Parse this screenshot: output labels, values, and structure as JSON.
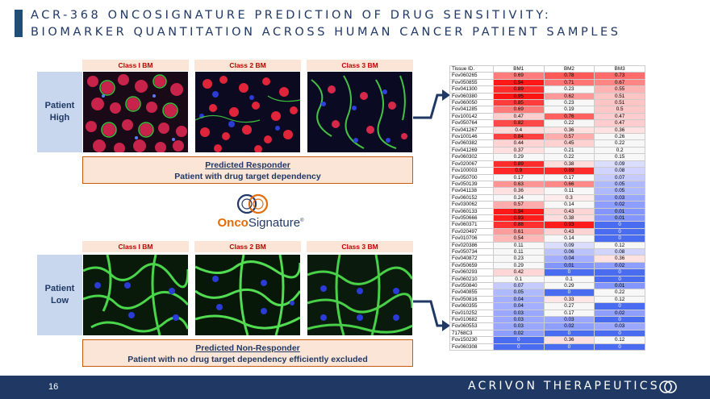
{
  "title": {
    "line1": "ACR-368 ONCOSIGNATURE PREDICTION OF DRUG SENSITIVITY:",
    "line2": "BIOMARKER QUANTITATION ACROSS HUMAN CANCER PATIENT SAMPLES"
  },
  "high": {
    "row_label": "Patient High",
    "class_headers": [
      "Class I BM",
      "Class 2 BM",
      "Class 3 BM"
    ],
    "prediction_title": "Predicted Responder",
    "prediction_text": "Patient with drug target dependency"
  },
  "low": {
    "row_label": "Patient Low",
    "class_headers": [
      "Class I BM",
      "Class 2 BM",
      "Class 3 BM"
    ],
    "prediction_title": "Predicted Non-Responder",
    "prediction_text": "Patient with no drug target dependency efficiently excluded"
  },
  "logo": {
    "part1": "Onco",
    "part2": "Signature",
    "mark": "®"
  },
  "table": {
    "headers": [
      "Tissue ID.",
      "BM1",
      "BM2",
      "BM3"
    ],
    "rows": [
      [
        "Fov060265",
        "0.69",
        "0.78",
        "0.73"
      ],
      [
        "Fov050855",
        "0.94",
        "0.71",
        "0.67"
      ],
      [
        "Fov041300",
        "0.89",
        "0.23",
        "0.55"
      ],
      [
        "Fov060380",
        "0.95",
        "0.62",
        "0.51"
      ],
      [
        "Fov060050",
        "0.85",
        "0.23",
        "0.51"
      ],
      [
        "Fov041285",
        "0.69",
        "0.19",
        "0.5"
      ],
      [
        "Fov100142",
        "0.47",
        "0.76",
        "0.47"
      ],
      [
        "Fov050764",
        "0.82",
        "0.22",
        "0.47"
      ],
      [
        "Fov041267",
        "0.4",
        "0.36",
        "0.36"
      ],
      [
        "Fov100146",
        "0.84",
        "0.57",
        "0.26"
      ],
      [
        "Fov060382",
        "0.44",
        "0.45",
        "0.22"
      ],
      [
        "Fov041269",
        "0.37",
        "0.21",
        "0.2"
      ],
      [
        "Fov060302",
        "0.29",
        "0.22",
        "0.15"
      ],
      [
        "Fov020067",
        "0.89",
        "0.38",
        "0.09"
      ],
      [
        "Fov100003",
        "0.9",
        "0.89",
        "0.08"
      ],
      [
        "Fov050700",
        "0.17",
        "0.17",
        "0.07"
      ],
      [
        "Fov050139",
        "0.63",
        "0.66",
        "0.05"
      ],
      [
        "Fov041138",
        "0.36",
        "0.11",
        "0.05"
      ],
      [
        "Fov060152",
        "0.24",
        "0.3",
        "0.03"
      ],
      [
        "Fov030062",
        "0.57",
        "0.14",
        "0.02"
      ],
      [
        "Fov060133",
        "0.94",
        "0.43",
        "0.01"
      ],
      [
        "Fov050666",
        "0.93",
        "0.38",
        "0.01"
      ],
      [
        "Fov060371",
        "0.88",
        "0.93",
        "0"
      ],
      [
        "Fov020497",
        "0.61",
        "0.43",
        "0"
      ],
      [
        "Fov010706",
        "0.54",
        "0.14",
        "0"
      ],
      [
        "Fov020386",
        "0.11",
        "0.09",
        "0.12"
      ],
      [
        "Fov050734",
        "0.11",
        "0.06",
        "0.08"
      ],
      [
        "Fov040872",
        "0.23",
        "0.04",
        "0.36"
      ],
      [
        "Fov050659",
        "0.29",
        "0.01",
        "0.02"
      ],
      [
        "Fov060293",
        "0.42",
        "0",
        "0"
      ],
      [
        "Fov060210",
        "0.1",
        "0.1",
        "0"
      ],
      [
        "Fov050840",
        "0.07",
        "0.29",
        "0.01"
      ],
      [
        "Fov040855",
        "0.05",
        "0",
        "0.22"
      ],
      [
        "Fov050816",
        "0.04",
        "0.33",
        "0.12"
      ],
      [
        "Fov060355",
        "0.04",
        "0.27",
        "0"
      ],
      [
        "Fov010252",
        "0.03",
        "0.17",
        "0.02"
      ],
      [
        "Fov010682",
        "0.03",
        "0.03",
        "0"
      ],
      [
        "Fov060553",
        "0.03",
        "0.02",
        "0.03"
      ],
      [
        "71768C3",
        "0.02",
        "0",
        "0"
      ],
      [
        "Fov150230",
        "0",
        "0.36",
        "0.12"
      ],
      [
        "Fov060308",
        "0",
        "0",
        "0"
      ]
    ]
  },
  "footer": {
    "page_number": "16",
    "company": "ACRIVON THERAPEUTICS"
  },
  "colors": {
    "navy": "#1f3864",
    "accent_red": "#c00000",
    "orange": "#e36c09",
    "highlight_bg": "#fbe5d6",
    "label_bg": "#c9d7ee"
  }
}
